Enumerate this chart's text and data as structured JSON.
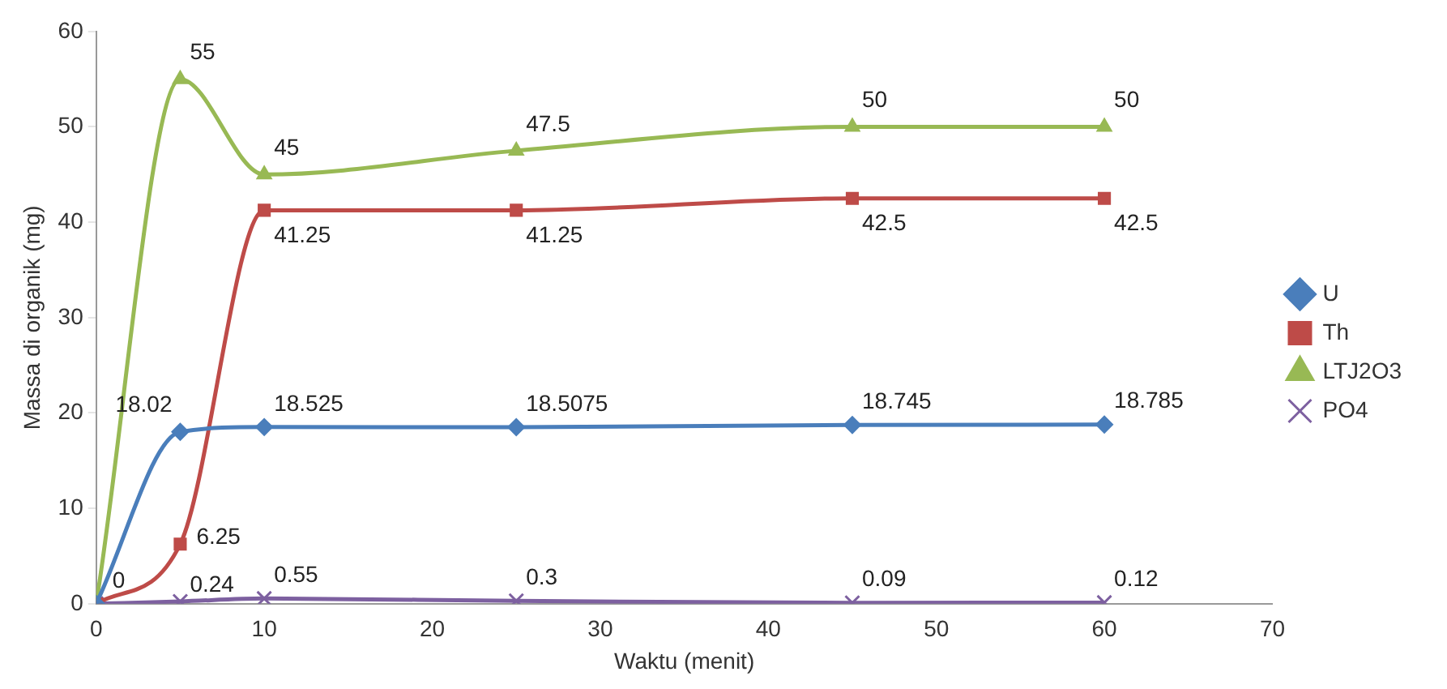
{
  "chart_data": {
    "type": "line",
    "xlabel": "Waktu (menit)",
    "ylabel": "Massa di organik (mg)",
    "x": [
      0,
      5,
      10,
      25,
      45,
      60
    ],
    "xlim": [
      0,
      70
    ],
    "xticks": [
      0,
      10,
      20,
      30,
      40,
      50,
      60,
      70
    ],
    "ylim": [
      0,
      60
    ],
    "yticks": [
      0,
      10,
      20,
      30,
      40,
      50,
      60
    ],
    "grid": false,
    "legend": "right",
    "line_style": "solid",
    "series": [
      {
        "name": "U",
        "color": "#4a7ebb",
        "marker": "diamond",
        "values": [
          0,
          18.02,
          18.525,
          18.5075,
          18.745,
          18.785
        ],
        "value_labels": [
          null,
          "18.02",
          "18.525",
          "18.5075",
          "18.745",
          "18.785"
        ]
      },
      {
        "name": "Th",
        "color": "#be4b48",
        "marker": "square",
        "values": [
          0,
          6.25,
          41.25,
          41.25,
          42.5,
          42.5
        ],
        "value_labels": [
          null,
          "6.25",
          "41.25",
          "41.25",
          "42.5",
          "42.5"
        ]
      },
      {
        "name": "LTJ2O3",
        "color": "#98b954",
        "marker": "triangle",
        "values": [
          0,
          55,
          45,
          47.5,
          50,
          50
        ],
        "value_labels": [
          null,
          "55",
          "45",
          "47.5",
          "50",
          "50"
        ]
      },
      {
        "name": "PO4",
        "color": "#7d60a0",
        "marker": "cross",
        "values": [
          0,
          0.24,
          0.55,
          0.3,
          0.09,
          0.12
        ],
        "value_labels": [
          "0",
          "0.24",
          "0.55",
          "0.3",
          "0.09",
          "0.12"
        ]
      }
    ]
  }
}
